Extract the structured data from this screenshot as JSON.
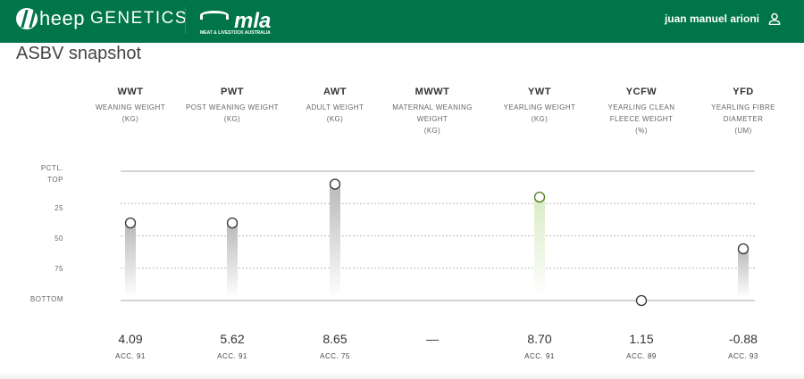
{
  "header": {
    "brand": "heep",
    "brand_suffix": "GENETICS",
    "partner_logo": "mla",
    "partner_sub": "MEAT & LIVESTOCK AUSTRALIA",
    "user_name": "juan manuel arioni",
    "user_icon": "user-icon",
    "bg": "#00754a"
  },
  "title": "ASBV snapshot",
  "chart_data": {
    "type": "lollipop",
    "y_axis": {
      "label_top": "PCTL.",
      "ticks": [
        "TOP",
        "25",
        "50",
        "75",
        "BOTTOM"
      ],
      "tick_values": [
        0,
        25,
        50,
        75,
        100
      ],
      "range": [
        0,
        100
      ]
    },
    "traits": [
      {
        "code": "WWT",
        "desc": "WEANING WEIGHT",
        "unit": "(KG)",
        "percentile": 40,
        "value": "4.09",
        "acc": "ACC. 91",
        "highlight": false
      },
      {
        "code": "PWT",
        "desc": "POST WEANING WEIGHT",
        "unit": "(KG)",
        "percentile": 40,
        "value": "5.62",
        "acc": "ACC. 91",
        "highlight": false
      },
      {
        "code": "AWT",
        "desc": "ADULT WEIGHT",
        "unit": "(KG)",
        "percentile": 10,
        "value": "8.65",
        "acc": "ACC. 75",
        "highlight": false
      },
      {
        "code": "MWWT",
        "desc": "MATERNAL WEANING WEIGHT",
        "unit": "(KG)",
        "percentile": null,
        "value": "—",
        "acc": "",
        "highlight": false
      },
      {
        "code": "YWT",
        "desc": "YEARLING WEIGHT",
        "unit": "(KG)",
        "percentile": 20,
        "value": "8.70",
        "acc": "ACC. 91",
        "highlight": true
      },
      {
        "code": "YCFW",
        "desc": "YEARLING CLEAN FLEECE WEIGHT",
        "unit": "(%)",
        "percentile": 100,
        "value": "1.15",
        "acc": "ACC. 89",
        "highlight": false
      },
      {
        "code": "YFD",
        "desc": "YEARLING FIBRE DIAMETER",
        "unit": "(UM)",
        "percentile": 60,
        "value": "-0.88",
        "acc": "ACC. 93",
        "highlight": false
      }
    ],
    "colors": {
      "stem": "#b8b9bc",
      "highlight": "#4a7a1e",
      "highlight_stem": "#d9ecc6"
    }
  }
}
